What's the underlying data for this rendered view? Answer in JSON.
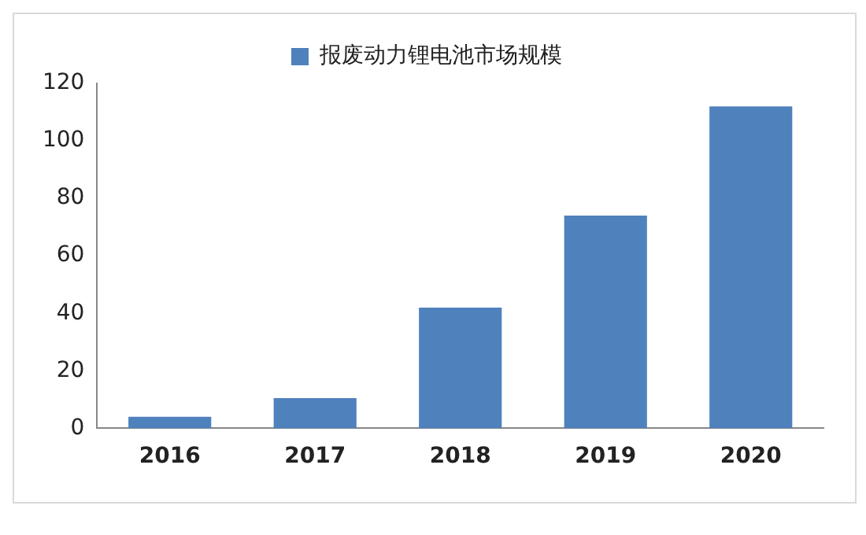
{
  "chart_data": {
    "type": "bar",
    "categories": [
      "2016",
      "2017",
      "2018",
      "2019",
      "2020"
    ],
    "series": [
      {
        "name": "报废动力锂电池市场规模",
        "color": "#4f81bd",
        "values": [
          4,
          10.5,
          42,
          74,
          112
        ]
      }
    ],
    "ylim": [
      0,
      120
    ],
    "yticks": [
      0,
      20,
      40,
      60,
      80,
      100,
      120
    ],
    "grid": false,
    "legend": "top"
  }
}
